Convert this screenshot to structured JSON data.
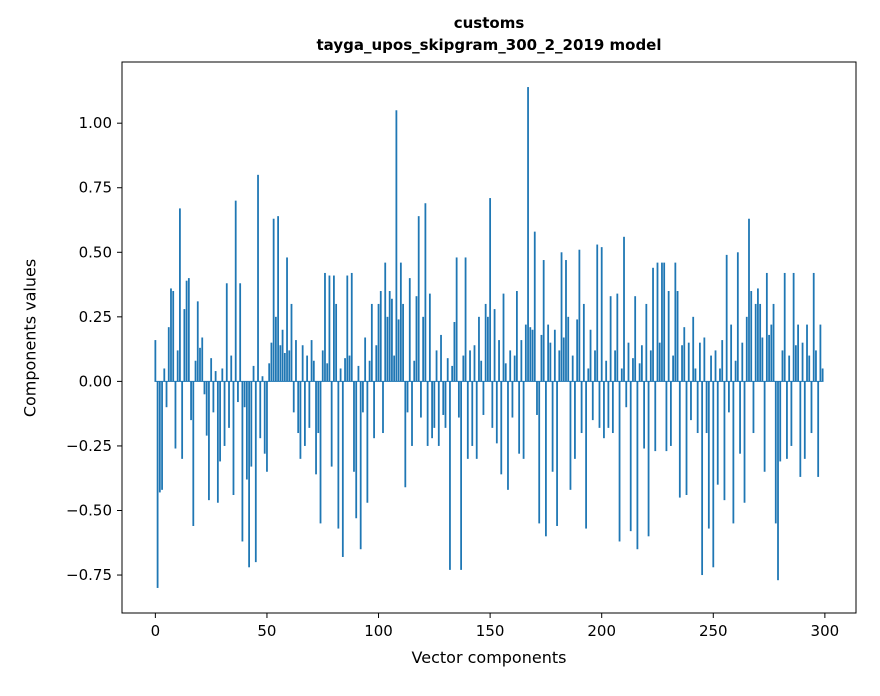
{
  "figure": {
    "title_line1": "customs",
    "title_line2": "tayga_upos_skipgram_300_2_2019 model",
    "xlabel": "Vector components",
    "ylabel": "Components values"
  },
  "chart_data": {
    "type": "bar",
    "title": "customs\ntayga_upos_skipgram_300_2_2019 model",
    "xlabel": "Vector components",
    "ylabel": "Components values",
    "legend": "none",
    "grid": false,
    "bar_color": "#1f77b4",
    "axis_color": "#000000",
    "xlim": [
      -14.95,
      313.95
    ],
    "ylim": [
      -0.897,
      1.237
    ],
    "xticks": [
      0,
      50,
      100,
      150,
      200,
      250,
      300
    ],
    "xtick_labels": [
      "0",
      "50",
      "100",
      "150",
      "200",
      "250",
      "300"
    ],
    "yticks": [
      -0.75,
      -0.5,
      -0.25,
      0,
      0.25,
      0.5,
      0.75,
      1.0
    ],
    "ytick_labels": [
      "−0.75",
      "−0.50",
      "−0.25",
      "0.00",
      "0.25",
      "0.50",
      "0.75",
      "1.00"
    ],
    "bar_width": 0.8,
    "values": [
      0.16,
      -0.8,
      -0.43,
      -0.42,
      0.05,
      -0.1,
      0.21,
      0.36,
      0.35,
      -0.26,
      0.12,
      0.67,
      -0.3,
      0.28,
      0.39,
      0.4,
      -0.15,
      -0.56,
      0.08,
      0.31,
      0.13,
      0.17,
      -0.05,
      -0.21,
      -0.46,
      0.09,
      -0.12,
      0.04,
      -0.47,
      -0.31,
      0.05,
      -0.25,
      0.38,
      -0.18,
      0.1,
      -0.44,
      0.7,
      -0.08,
      0.38,
      -0.62,
      -0.1,
      -0.38,
      -0.72,
      -0.33,
      0.06,
      -0.7,
      0.8,
      -0.22,
      0.02,
      -0.28,
      -0.35,
      0.07,
      0.15,
      0.63,
      0.25,
      0.64,
      0.14,
      0.2,
      0.11,
      0.48,
      0.12,
      0.3,
      -0.12,
      0.16,
      -0.2,
      -0.3,
      0.14,
      -0.25,
      0.1,
      -0.18,
      0.16,
      0.08,
      -0.36,
      -0.2,
      -0.55,
      0.12,
      0.42,
      0.07,
      0.41,
      -0.33,
      0.41,
      0.3,
      -0.57,
      0.05,
      -0.68,
      0.09,
      0.41,
      0.1,
      0.42,
      -0.35,
      -0.53,
      0.06,
      -0.65,
      -0.12,
      0.17,
      -0.47,
      0.08,
      0.3,
      -0.22,
      0.14,
      0.3,
      0.35,
      -0.2,
      0.46,
      0.25,
      0.35,
      0.32,
      0.1,
      1.05,
      0.24,
      0.46,
      0.3,
      -0.41,
      -0.12,
      0.4,
      -0.25,
      0.08,
      0.33,
      0.64,
      -0.14,
      0.25,
      0.69,
      -0.25,
      0.34,
      -0.22,
      -0.18,
      0.12,
      -0.25,
      0.18,
      -0.13,
      -0.18,
      0.09,
      -0.73,
      0.06,
      0.23,
      0.48,
      -0.14,
      -0.73,
      0.1,
      0.48,
      -0.3,
      0.12,
      -0.25,
      0.14,
      -0.3,
      0.25,
      0.08,
      -0.13,
      0.3,
      0.25,
      0.71,
      -0.18,
      0.28,
      -0.24,
      0.16,
      -0.36,
      0.34,
      0.07,
      -0.42,
      0.12,
      -0.14,
      0.1,
      0.35,
      -0.28,
      0.16,
      -0.3,
      0.22,
      1.14,
      0.21,
      0.2,
      0.58,
      -0.13,
      -0.55,
      0.18,
      0.47,
      -0.6,
      0.22,
      0.15,
      -0.35,
      0.2,
      -0.56,
      0.12,
      0.5,
      0.17,
      0.47,
      0.25,
      -0.42,
      0.1,
      -0.3,
      0.24,
      0.51,
      -0.2,
      0.3,
      -0.57,
      0.05,
      0.2,
      -0.15,
      0.12,
      0.53,
      -0.18,
      0.52,
      -0.22,
      0.08,
      -0.18,
      0.33,
      -0.2,
      0.12,
      0.34,
      -0.62,
      0.05,
      0.56,
      -0.1,
      0.15,
      -0.58,
      0.09,
      0.33,
      -0.65,
      0.07,
      0.14,
      -0.26,
      0.3,
      -0.6,
      0.12,
      0.44,
      -0.27,
      0.46,
      0.15,
      0.46,
      0.46,
      -0.27,
      0.35,
      -0.25,
      0.1,
      0.46,
      0.35,
      -0.45,
      0.14,
      0.21,
      -0.44,
      0.15,
      -0.15,
      0.25,
      0.05,
      -0.2,
      0.15,
      -0.75,
      0.17,
      -0.2,
      -0.57,
      0.1,
      -0.72,
      0.12,
      -0.4,
      0.05,
      0.16,
      -0.46,
      0.49,
      -0.12,
      0.22,
      -0.55,
      0.08,
      0.5,
      -0.28,
      0.15,
      -0.47,
      0.25,
      0.63,
      0.35,
      -0.2,
      0.3,
      0.36,
      0.3,
      0.17,
      -0.35,
      0.42,
      0.18,
      0.22,
      0.3,
      -0.55,
      -0.77,
      -0.31,
      0.12,
      0.42,
      -0.3,
      0.1,
      -0.25,
      0.42,
      0.14,
      0.22,
      -0.37,
      0.15,
      -0.3,
      0.22,
      0.1,
      -0.2,
      0.42,
      0.12,
      -0.37,
      0.22,
      0.05
    ]
  }
}
